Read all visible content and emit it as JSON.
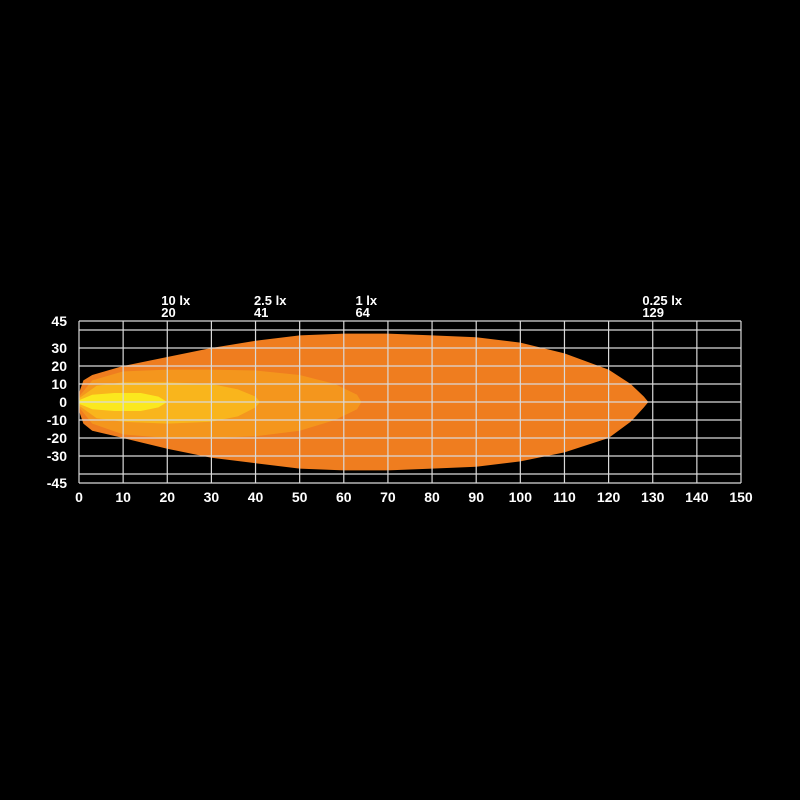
{
  "chart_data": {
    "type": "area",
    "title": "",
    "xlabel": "",
    "ylabel": "",
    "xlim": [
      0,
      150
    ],
    "ylim": [
      -45,
      45
    ],
    "x_ticks": [
      0,
      10,
      20,
      30,
      40,
      50,
      60,
      70,
      80,
      90,
      100,
      110,
      120,
      130,
      140,
      150
    ],
    "y_ticks": [
      45,
      30,
      20,
      10,
      0,
      -10,
      -20,
      -30,
      -45
    ],
    "y_gridlines": [
      45,
      40,
      30,
      20,
      10,
      0,
      -10,
      -20,
      -30,
      -40,
      -45
    ],
    "grid": true,
    "background": "#000000",
    "grid_color": "#d9d9d9",
    "annotations": [
      {
        "label": "10 lx",
        "value": "20",
        "x": 20
      },
      {
        "label": "2.5 lx",
        "value": "41",
        "x": 41
      },
      {
        "label": "1 lx",
        "value": "64",
        "x": 64
      },
      {
        "label": "0.25 lx",
        "value": "129",
        "x": 129
      }
    ],
    "series": [
      {
        "name": "0.25 lx",
        "color": "#EF7D1F",
        "upper": [
          [
            0,
            5
          ],
          [
            1,
            12
          ],
          [
            3,
            15
          ],
          [
            10,
            20
          ],
          [
            20,
            25
          ],
          [
            30,
            30
          ],
          [
            40,
            34
          ],
          [
            50,
            37
          ],
          [
            60,
            38
          ],
          [
            70,
            38
          ],
          [
            80,
            37
          ],
          [
            90,
            36
          ],
          [
            100,
            33
          ],
          [
            110,
            27
          ],
          [
            120,
            18
          ],
          [
            125,
            10
          ],
          [
            128,
            3
          ],
          [
            129,
            0
          ]
        ],
        "lower": [
          [
            0,
            -5
          ],
          [
            1,
            -12
          ],
          [
            3,
            -16
          ],
          [
            10,
            -20
          ],
          [
            20,
            -26
          ],
          [
            30,
            -31
          ],
          [
            40,
            -34
          ],
          [
            50,
            -37
          ],
          [
            60,
            -38
          ],
          [
            70,
            -38
          ],
          [
            80,
            -37
          ],
          [
            90,
            -36
          ],
          [
            100,
            -33
          ],
          [
            110,
            -28
          ],
          [
            120,
            -20
          ],
          [
            125,
            -11
          ],
          [
            128,
            -3
          ],
          [
            129,
            0
          ]
        ]
      },
      {
        "name": "1 lx",
        "color": "#F4961D",
        "upper": [
          [
            0,
            3
          ],
          [
            3,
            12
          ],
          [
            10,
            17
          ],
          [
            20,
            18
          ],
          [
            30,
            18
          ],
          [
            40,
            17.5
          ],
          [
            50,
            15
          ],
          [
            58,
            10
          ],
          [
            63,
            4
          ],
          [
            64,
            0
          ]
        ],
        "lower": [
          [
            0,
            -3
          ],
          [
            3,
            -12
          ],
          [
            10,
            -18
          ],
          [
            20,
            -20
          ],
          [
            30,
            -20
          ],
          [
            40,
            -19
          ],
          [
            50,
            -16
          ],
          [
            58,
            -10
          ],
          [
            63,
            -4
          ],
          [
            64,
            0
          ]
        ]
      },
      {
        "name": "2.5 lx",
        "color": "#F9B51C",
        "upper": [
          [
            0,
            2
          ],
          [
            4,
            9
          ],
          [
            10,
            11
          ],
          [
            20,
            11
          ],
          [
            30,
            10
          ],
          [
            36,
            7
          ],
          [
            40,
            3
          ],
          [
            41,
            0
          ]
        ],
        "lower": [
          [
            0,
            -2
          ],
          [
            4,
            -9
          ],
          [
            10,
            -11
          ],
          [
            20,
            -12
          ],
          [
            30,
            -11
          ],
          [
            36,
            -8
          ],
          [
            40,
            -3
          ],
          [
            41,
            0
          ]
        ]
      },
      {
        "name": "10 lx",
        "color": "#FBE81E",
        "upper": [
          [
            0,
            1
          ],
          [
            3,
            4
          ],
          [
            8,
            5
          ],
          [
            14,
            5
          ],
          [
            18,
            3
          ],
          [
            20,
            0
          ]
        ],
        "lower": [
          [
            0,
            -1
          ],
          [
            3,
            -4
          ],
          [
            8,
            -5
          ],
          [
            14,
            -5
          ],
          [
            18,
            -3
          ],
          [
            20,
            0
          ]
        ]
      }
    ]
  }
}
